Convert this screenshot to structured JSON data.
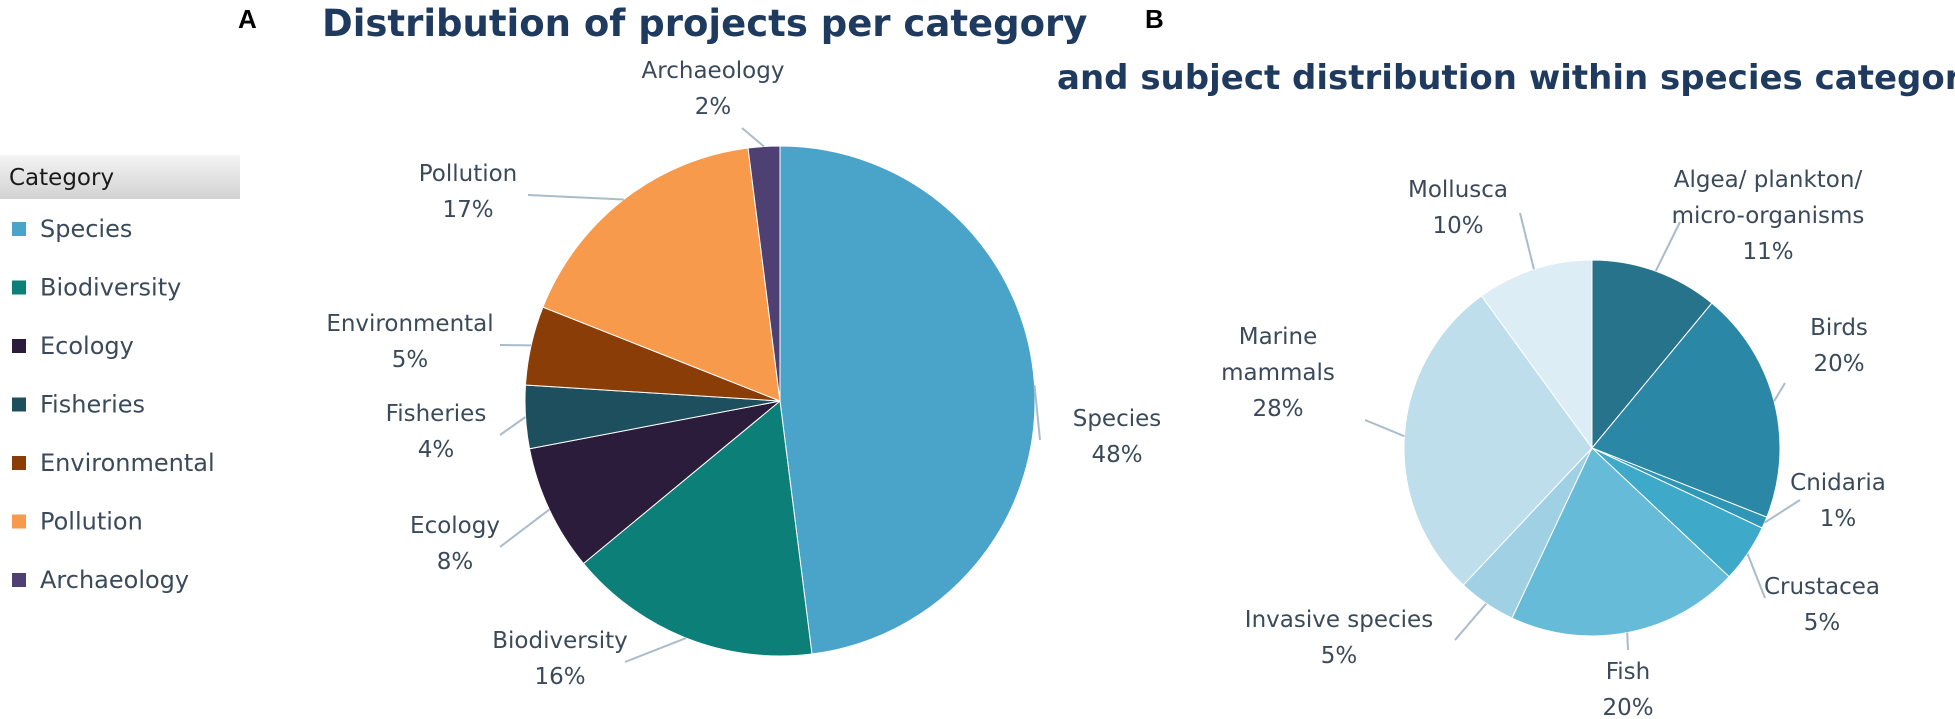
{
  "panels": {
    "a": "A",
    "b": "B"
  },
  "chart_data": [
    {
      "type": "pie",
      "title": "Distribution of projects per category",
      "legend_title": "Category",
      "legend_position": "left",
      "categories": [
        "Species",
        "Biodiversity",
        "Ecology",
        "Fisheries",
        "Environmental",
        "Pollution",
        "Archaeology"
      ],
      "values": [
        48,
        16,
        8,
        4,
        5,
        17,
        2
      ],
      "value_labels": [
        "48%",
        "16%",
        "8%",
        "4%",
        "5%",
        "17%",
        "2%"
      ],
      "colors": [
        "#4aa3c8",
        "#0b7f78",
        "#2c1c3c",
        "#1d4f5e",
        "#8a3d06",
        "#f89a4c",
        "#4e4072"
      ]
    },
    {
      "type": "pie",
      "title": "and subject distribution within species category",
      "categories": [
        "Algea/ plankton/ micro-organisms",
        "Birds",
        "Cnidaria",
        "Crustacea",
        "Fish",
        "Invasive species",
        "Marine mammals",
        "Mollusca"
      ],
      "label_lines": [
        [
          "Algea/ plankton/",
          "micro-organisms"
        ],
        [
          "Birds"
        ],
        [
          "Cnidaria"
        ],
        [
          "Crustacea"
        ],
        [
          "Fish"
        ],
        [
          "Invasive species"
        ],
        [
          "Marine",
          "mammals"
        ],
        [
          "Mollusca"
        ]
      ],
      "values": [
        11,
        20,
        1,
        5,
        20,
        5,
        28,
        10
      ],
      "value_labels": [
        "11%",
        "20%",
        "1%",
        "5%",
        "20%",
        "5%",
        "28%",
        "10%"
      ],
      "colors": [
        "#27738b",
        "#2b87a6",
        "#2f97b5",
        "#3ea9c8",
        "#66bcd8",
        "#9fd0e4",
        "#bfdeec",
        "#dcedf6"
      ]
    }
  ]
}
